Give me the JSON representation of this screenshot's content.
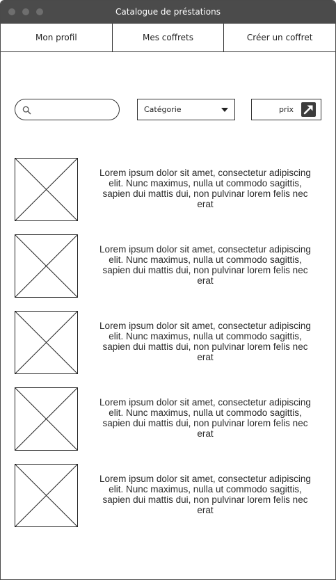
{
  "window": {
    "title": "Catalogue de préstations"
  },
  "nav": {
    "items": [
      {
        "label": "Mon profil"
      },
      {
        "label": "Mes coffrets"
      },
      {
        "label": "Créer un coffret"
      }
    ]
  },
  "filters": {
    "search": {
      "value": "",
      "placeholder": ""
    },
    "category": {
      "selected": "Catégorie"
    },
    "price_button": {
      "label": "prix"
    }
  },
  "catalog": {
    "items": [
      {
        "description": "Lorem ipsum dolor sit amet, consectetur adipiscing elit. Nunc maximus, nulla ut commodo sagittis, sapien dui mattis dui, non pulvinar lorem felis nec erat"
      },
      {
        "description": "Lorem ipsum dolor sit amet, consectetur adipiscing elit. Nunc maximus, nulla ut commodo sagittis, sapien dui mattis dui, non pulvinar lorem felis nec erat"
      },
      {
        "description": "Lorem ipsum dolor sit amet, consectetur adipiscing elit. Nunc maximus, nulla ut commodo sagittis, sapien dui mattis dui, non pulvinar lorem felis nec erat"
      },
      {
        "description": "Lorem ipsum dolor sit amet, consectetur adipiscing elit. Nunc maximus, nulla ut commodo sagittis, sapien dui mattis dui, non pulvinar lorem felis nec erat"
      },
      {
        "description": "Lorem ipsum dolor sit amet, consectetur adipiscing elit. Nunc maximus, nulla ut commodo sagittis, sapien dui mattis dui, non pulvinar lorem felis nec erat"
      }
    ]
  },
  "icons": {
    "search": "search-icon",
    "dropdown": "caret-down-icon",
    "price": "arrow-up-right-icon",
    "placeholder_image": "image-placeholder-icon"
  },
  "colors": {
    "titlebar": "#4b4b4b",
    "border": "#333333",
    "text": "#222222"
  }
}
